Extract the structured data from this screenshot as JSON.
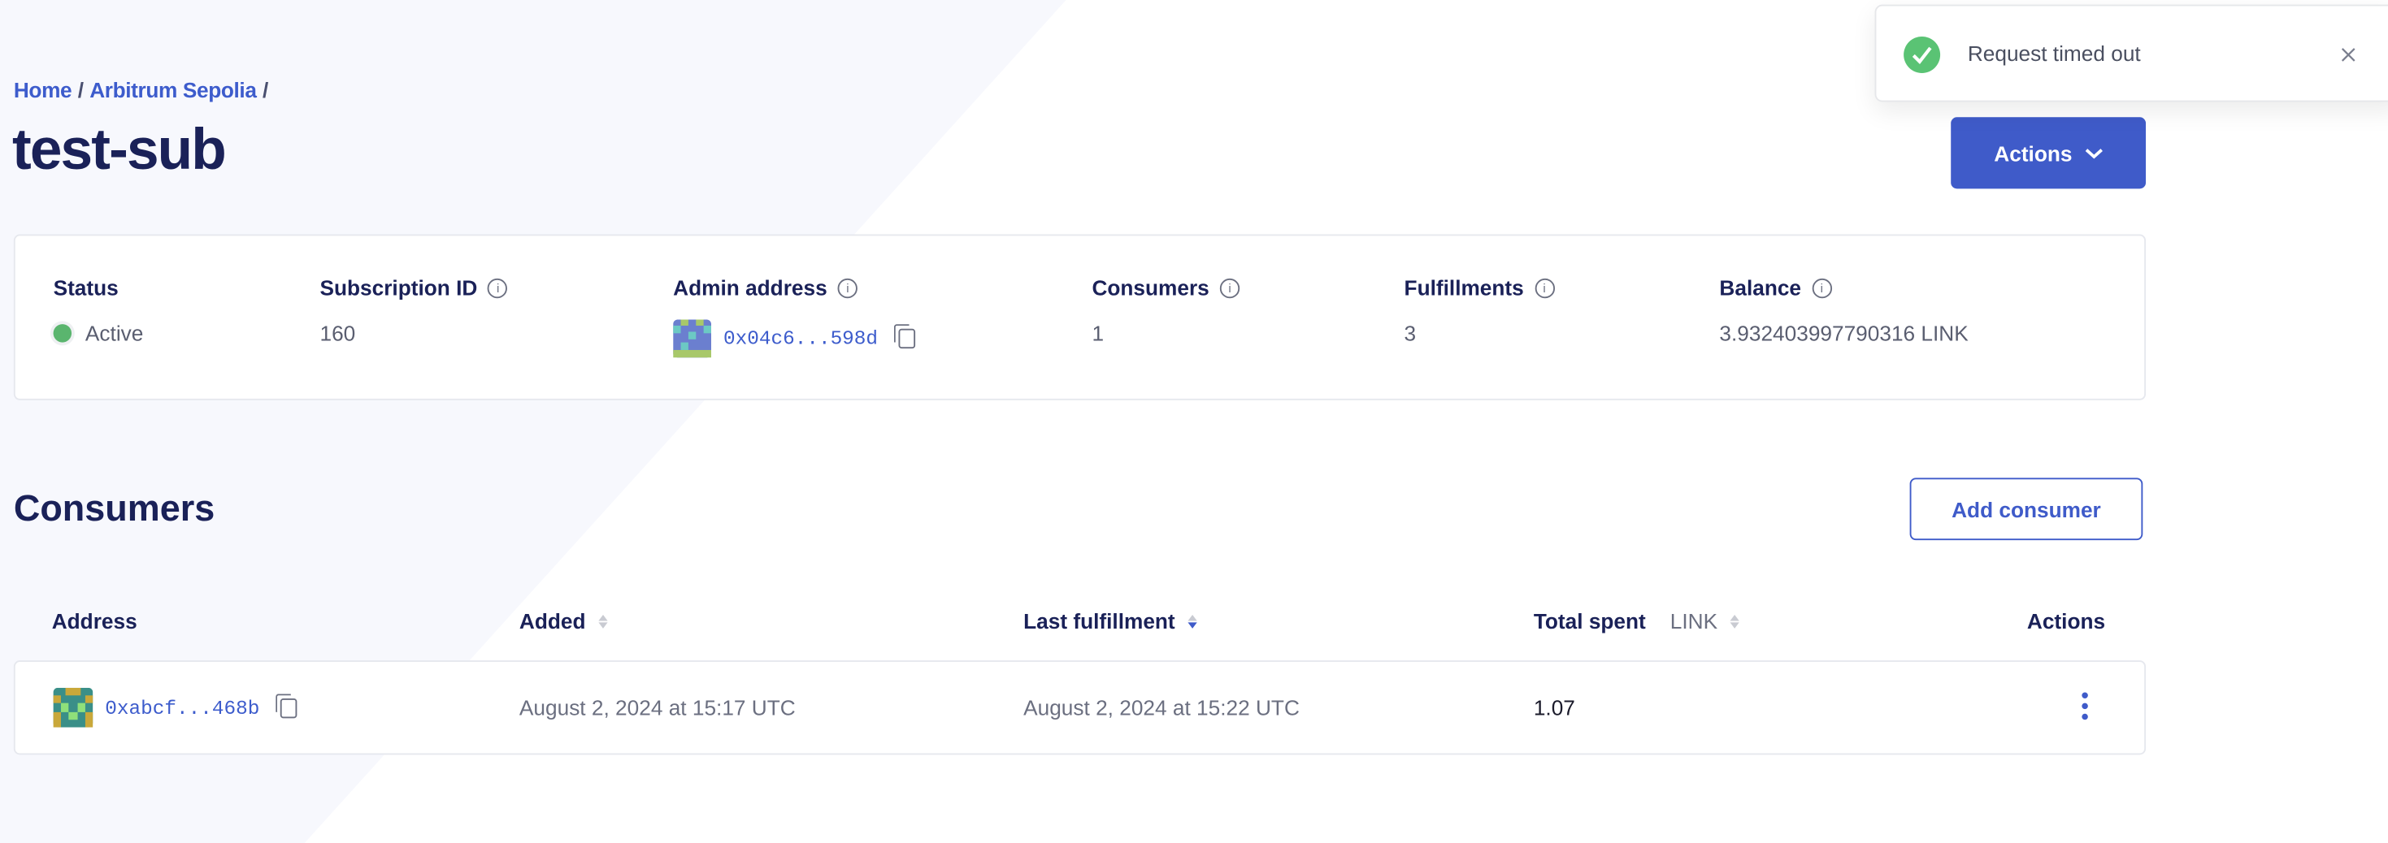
{
  "toast": {
    "message": "Request timed out",
    "status_color": "#5ac374",
    "icon": "check-circle-icon",
    "close_icon": "close-icon"
  },
  "breadcrumb": {
    "items": [
      "Home",
      "Arbitrum Sepolia"
    ],
    "separator": "/"
  },
  "header": {
    "title": "test-sub",
    "actions_label": "Actions"
  },
  "summary": {
    "status": {
      "label": "Status",
      "value": "Active",
      "color": "#5ab56e"
    },
    "subscription_id": {
      "label": "Subscription ID",
      "value": "160"
    },
    "admin_address": {
      "label": "Admin address",
      "value": "0x04c6...598d"
    },
    "consumers": {
      "label": "Consumers",
      "value": "1"
    },
    "fulfillments": {
      "label": "Fulfillments",
      "value": "3"
    },
    "balance": {
      "label": "Balance",
      "value": "3.932403997790316 LINK"
    }
  },
  "consumers": {
    "title": "Consumers",
    "add_label": "Add consumer",
    "columns": {
      "address": "Address",
      "added": "Added",
      "last_fulfillment": "Last fulfillment",
      "total_spent": "Total spent",
      "unit": "LINK",
      "actions": "Actions"
    },
    "rows": [
      {
        "address": "0xabcf...468b",
        "added": "August 2, 2024 at 15:17 UTC",
        "last_fulfillment": "August 2, 2024 at 15:22 UTC",
        "total_spent": "1.07"
      }
    ]
  },
  "colors": {
    "accent": "#3f5bc9",
    "heading": "#1a2158"
  }
}
